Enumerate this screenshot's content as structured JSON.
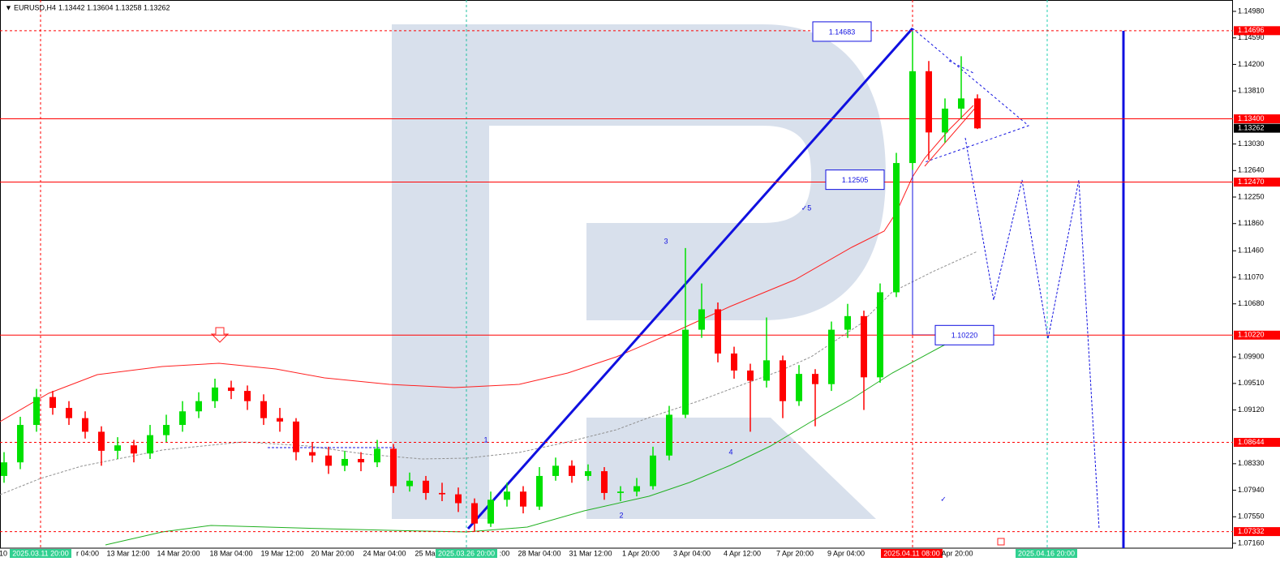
{
  "chart_data": {
    "type": "candlestick",
    "title": "EURUSD,H4",
    "header_values": [
      "1.13442",
      "1.13604",
      "1.13258",
      "1.13262"
    ],
    "up_color": "#00e000",
    "down_color": "#ff0000",
    "candles": {
      "open": [
        1.0815,
        1.0835,
        1.089,
        1.0931,
        1.0915,
        1.09,
        1.088,
        1.0852,
        1.086,
        1.0848,
        1.0875,
        1.089,
        1.091,
        1.0925,
        1.0945,
        1.094,
        1.0925,
        1.09,
        1.0895,
        1.085,
        1.0845,
        1.083,
        1.084,
        1.0835,
        1.0855,
        1.08,
        1.0808,
        1.079,
        1.0788,
        1.0775,
        1.0745,
        1.078,
        1.0792,
        1.077,
        1.0815,
        1.083,
        1.0815,
        1.0822,
        1.079,
        1.0792,
        1.08,
        1.0845,
        1.0905,
        1.103,
        1.106,
        1.0995,
        1.097,
        1.0955,
        1.0985,
        1.0925,
        1.0965,
        1.095,
        1.103,
        1.105,
        1.096,
        1.1085,
        1.1275,
        1.141,
        1.132,
        1.1355,
        1.137
      ],
      "high": [
        1.085,
        1.0902,
        1.0943,
        1.094,
        1.0925,
        1.091,
        1.0888,
        1.0872,
        1.0868,
        1.089,
        1.0905,
        1.0925,
        1.0938,
        1.0958,
        1.0955,
        1.0948,
        1.0935,
        1.0915,
        1.09,
        1.0865,
        1.0858,
        1.0852,
        1.085,
        1.0868,
        1.0862,
        1.082,
        1.0815,
        1.0805,
        1.0798,
        1.0782,
        1.0792,
        1.0805,
        1.08,
        1.0828,
        1.0842,
        1.0838,
        1.0832,
        1.0828,
        1.08,
        1.0812,
        1.0858,
        1.0918,
        1.115,
        1.1098,
        1.107,
        1.1005,
        1.098,
        1.1048,
        1.0992,
        1.0978,
        1.0972,
        1.1042,
        1.1068,
        1.1058,
        1.1098,
        1.129,
        1.14683,
        1.1425,
        1.137,
        1.1432,
        1.1376
      ],
      "low": [
        1.0805,
        1.0825,
        1.088,
        1.0905,
        1.089,
        1.087,
        1.083,
        1.084,
        1.0835,
        1.084,
        1.0865,
        1.088,
        1.09,
        1.0915,
        1.0928,
        1.0912,
        1.089,
        1.088,
        1.0838,
        1.0835,
        1.0818,
        1.0822,
        1.0822,
        1.0828,
        1.079,
        1.0792,
        1.078,
        1.0778,
        1.0762,
        1.0733,
        1.074,
        1.077,
        1.076,
        1.0765,
        1.0808,
        1.0805,
        1.0808,
        1.078,
        1.0778,
        1.0785,
        1.0795,
        1.0838,
        1.09,
        1.1018,
        1.0982,
        1.0958,
        1.088,
        1.0945,
        1.09,
        1.0918,
        1.0888,
        1.094,
        1.1018,
        1.0912,
        1.0952,
        1.1078,
        1.1265,
        1.128,
        1.1305,
        1.134,
        1.1325
      ],
      "close": [
        1.0835,
        1.089,
        1.0931,
        1.0915,
        1.09,
        1.088,
        1.0852,
        1.086,
        1.0848,
        1.0875,
        1.089,
        1.091,
        1.0925,
        1.0945,
        1.094,
        1.0925,
        1.09,
        1.0895,
        1.085,
        1.0845,
        1.083,
        1.084,
        1.0835,
        1.0855,
        1.08,
        1.0808,
        1.079,
        1.0788,
        1.0775,
        1.0745,
        1.078,
        1.0792,
        1.077,
        1.0815,
        1.083,
        1.0815,
        1.0822,
        1.079,
        1.0792,
        1.08,
        1.0845,
        1.0905,
        1.103,
        1.106,
        1.0995,
        1.097,
        1.0955,
        1.0985,
        1.0925,
        1.0965,
        1.095,
        1.103,
        1.105,
        1.096,
        1.1085,
        1.1275,
        1.141,
        1.132,
        1.1355,
        1.137,
        1.1326
      ]
    },
    "ylim": [
      1.0716,
      1.1498
    ],
    "yticks": [
      {
        "value": 1.1498,
        "label": "1.14980"
      },
      {
        "value": 1.1459,
        "label": "1.14590"
      },
      {
        "value": 1.142,
        "label": "1.14200"
      },
      {
        "value": 1.1381,
        "label": "1.13810"
      },
      {
        "value": 1.1303,
        "label": "1.13030"
      },
      {
        "value": 1.1264,
        "label": "1.12640"
      },
      {
        "value": 1.1225,
        "label": "1.12250"
      },
      {
        "value": 1.1186,
        "label": "1.11860"
      },
      {
        "value": 1.1146,
        "label": "1.11460"
      },
      {
        "value": 1.1107,
        "label": "1.11070"
      },
      {
        "value": 1.1068,
        "label": "1.10680"
      },
      {
        "value": 1.099,
        "label": "1.09900"
      },
      {
        "value": 1.0951,
        "label": "1.09510"
      },
      {
        "value": 1.0912,
        "label": "1.09120"
      },
      {
        "value": 1.0833,
        "label": "1.08330"
      },
      {
        "value": 1.0794,
        "label": "1.07940"
      },
      {
        "value": 1.0755,
        "label": "1.07550"
      },
      {
        "value": 1.0716,
        "label": "1.07160"
      }
    ],
    "price_labels": [
      {
        "value": 1.14696,
        "label": "1.14696",
        "bg": "#ff0000",
        "line": "dashed"
      },
      {
        "value": 1.134,
        "label": "1.13400",
        "bg": "#ff0000",
        "line": "solid"
      },
      {
        "value": 1.13262,
        "label": "1.13262",
        "bg": "#000000",
        "line": "none"
      },
      {
        "value": 1.1247,
        "label": "1.12470",
        "bg": "#ff0000",
        "line": "solid"
      },
      {
        "value": 1.1022,
        "label": "1.10220",
        "bg": "#ff0000",
        "line": "solid"
      },
      {
        "value": 1.08644,
        "label": "1.08644",
        "bg": "#ff0000",
        "line": "dashed"
      },
      {
        "value": 1.07332,
        "label": "1.07332",
        "bg": "#ff0000",
        "line": "dashed"
      }
    ],
    "boxed_labels": [
      {
        "value": 1.14683,
        "label": "1.14683"
      },
      {
        "value": 1.12505,
        "label": "1.12505"
      },
      {
        "value": 1.1022,
        "label": "1.10220"
      }
    ],
    "wave_labels": [
      "1",
      "2",
      "3",
      "4",
      "✓5",
      "✓"
    ],
    "time_labels": [
      {
        "label": "10",
        "highlight": false
      },
      {
        "label": "2025.03.11 20:00",
        "highlight": true
      },
      {
        "label": "r 04:00",
        "highlight": false
      },
      {
        "label": "13 Mar 12:00",
        "highlight": false
      },
      {
        "label": "14 Mar 20:00",
        "highlight": false
      },
      {
        "label": "18 Mar 04:00",
        "highlight": false
      },
      {
        "label": "19 Mar 12:00",
        "highlight": false
      },
      {
        "label": "20 Mar 20:00",
        "highlight": false
      },
      {
        "label": "24 Mar 04:00",
        "highlight": false
      },
      {
        "label": "25 Ma",
        "highlight": false
      },
      {
        "label": "2025.03.26 20:00",
        "highlight": true
      },
      {
        "label": ":00",
        "highlight": false
      },
      {
        "label": "28 Mar 04:00",
        "highlight": false
      },
      {
        "label": "31 Mar 12:00",
        "highlight": false
      },
      {
        "label": "1 Apr 20:00",
        "highlight": false
      },
      {
        "label": "3 Apr 04:00",
        "highlight": false
      },
      {
        "label": "4 Apr 12:00",
        "highlight": false
      },
      {
        "label": "7 Apr 20:00",
        "highlight": false
      },
      {
        "label": "9 Apr 04:00",
        "highlight": false
      },
      {
        "label": "2025.04.11 08:00",
        "highlight": true
      },
      {
        "label": "Apr 20:00",
        "highlight": false
      },
      {
        "label": "2025.04.16 20:00",
        "highlight": true
      }
    ]
  }
}
